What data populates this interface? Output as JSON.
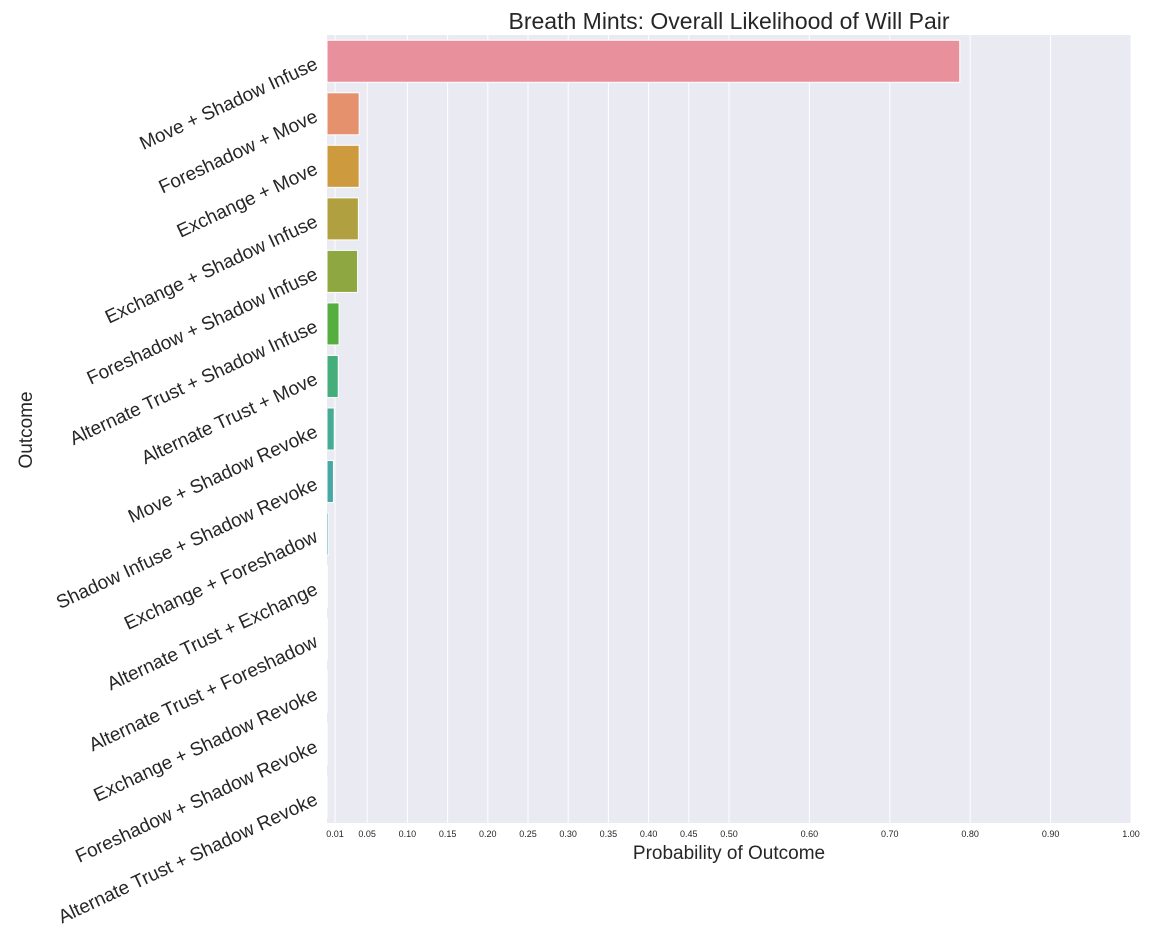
{
  "chart_data": {
    "type": "bar",
    "orientation": "horizontal",
    "title": "Breath Mints: Overall Likelihood of Will Pair",
    "xlabel": "Probability of Outcome",
    "ylabel": "Outcome",
    "xlim": [
      0,
      1.0
    ],
    "grid": true,
    "legend": "none",
    "background": "#eaeaf2",
    "gridline_color": "#ffffff",
    "xticks": [
      0.01,
      0.05,
      0.1,
      0.15,
      0.2,
      0.25,
      0.3,
      0.35,
      0.4,
      0.45,
      0.5,
      0.6,
      0.7,
      0.8,
      0.9,
      1.0
    ],
    "xtick_labels": [
      "0.01",
      "0.05",
      "0.10",
      "0.15",
      "0.20",
      "0.25",
      "0.30",
      "0.35",
      "0.40",
      "0.45",
      "0.50",
      "0.60",
      "0.70",
      "0.80",
      "0.90",
      "1.00"
    ],
    "categories": [
      "Move + Shadow Infuse",
      "Foreshadow + Move",
      "Exchange + Move",
      "Exchange + Shadow Infuse",
      "Foreshadow + Shadow Infuse",
      "Alternate Trust + Shadow Infuse",
      "Alternate Trust + Move",
      "Move + Shadow Revoke",
      "Shadow Infuse + Shadow Revoke",
      "Exchange + Foreshadow",
      "Alternate Trust + Exchange",
      "Alternate Trust + Foreshadow",
      "Exchange + Shadow Revoke",
      "Foreshadow + Shadow Revoke",
      "Alternate Trust + Shadow Revoke"
    ],
    "values": [
      0.787,
      0.04,
      0.04,
      0.039,
      0.038,
      0.015,
      0.014,
      0.009,
      0.008,
      0.002,
      0.0005,
      0.0004,
      0.0003,
      0.0002,
      0.0001
    ],
    "colors": [
      "#e8909c",
      "#e5916e",
      "#cd9a3e",
      "#b0a03f",
      "#8fa740",
      "#55ae3f",
      "#45ae7a",
      "#45ab95",
      "#47a8a5",
      "#48a6b5",
      "#4aa3c6",
      "#5e9ce0",
      "#a38fe3",
      "#c786e0",
      "#e47ec9"
    ]
  }
}
